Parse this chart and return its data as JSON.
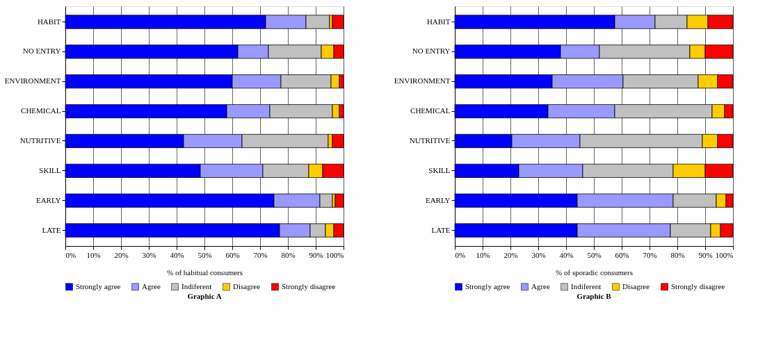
{
  "chart_data": [
    {
      "type": "bar",
      "orientation": "horizontal",
      "stacked": true,
      "title": "Graphic A",
      "xlabel": "% of habitual consumers",
      "categories": [
        "HABIT",
        "NO ENTRY",
        "ENVIRONMENT",
        "CHEMICAL",
        "NUTRITIVE",
        "SKILL",
        "EARLY",
        "LATE"
      ],
      "series": [
        {
          "name": "Strongly agree",
          "color": "#0000ff",
          "values": [
            72,
            62,
            60,
            58,
            42.5,
            48.5,
            75,
            77
          ]
        },
        {
          "name": "Agree",
          "color": "#9999ff",
          "values": [
            14.5,
            11,
            17.5,
            15.5,
            21,
            22.5,
            16.5,
            11
          ]
        },
        {
          "name": "Indiferent",
          "color": "#c0c0c0",
          "values": [
            8.5,
            19,
            18,
            22.5,
            31,
            16.5,
            4.5,
            5.5
          ]
        },
        {
          "name": "Disagree",
          "color": "#ffcc00",
          "values": [
            1,
            4.5,
            3,
            2.5,
            1.5,
            5,
            1,
            3
          ]
        },
        {
          "name": "Strongly disagree",
          "color": "#ff0000",
          "values": [
            4,
            3.5,
            1.5,
            1.5,
            4,
            7.5,
            3,
            3.5
          ]
        }
      ],
      "xlim": [
        0,
        100
      ],
      "xticks": [
        {
          "value": 0,
          "label": "0%"
        },
        {
          "value": 10,
          "label": "10%"
        },
        {
          "value": 20,
          "label": "20%"
        },
        {
          "value": 30,
          "label": "30%"
        },
        {
          "value": 40,
          "label": "40%"
        },
        {
          "value": 50,
          "label": "50%"
        },
        {
          "value": 60,
          "label": "60%"
        },
        {
          "value": 70,
          "label": "70%"
        },
        {
          "value": 80,
          "label": "80%"
        },
        {
          "value": 90,
          "label": "90%"
        },
        {
          "value": 100,
          "label": "100%"
        }
      ],
      "grid": "x",
      "legend": "bottom"
    },
    {
      "type": "bar",
      "orientation": "horizontal",
      "stacked": true,
      "title": "Graphic B",
      "xlabel": "% of sporadic consumers",
      "categories": [
        "HABIT",
        "NO ENTRY",
        "ENVIRONMENT",
        "CHEMICAL",
        "NUTRITIVE",
        "SKILL",
        "EARLY",
        "LATE"
      ],
      "series": [
        {
          "name": "Strongly agree",
          "color": "#0000ff",
          "values": [
            57.5,
            38,
            35,
            33.5,
            20.5,
            23,
            44,
            44
          ]
        },
        {
          "name": "Agree",
          "color": "#9999ff",
          "values": [
            14.5,
            14,
            25.5,
            24,
            24.5,
            23,
            34.5,
            33.5
          ]
        },
        {
          "name": "Indiferent",
          "color": "#c0c0c0",
          "values": [
            11.5,
            32.5,
            27,
            35,
            44,
            32.5,
            15.5,
            14.5
          ]
        },
        {
          "name": "Disagree",
          "color": "#ffcc00",
          "values": [
            7.5,
            5.5,
            7,
            4.5,
            5.5,
            11.5,
            3.5,
            3.5
          ]
        },
        {
          "name": "Strongly disagree",
          "color": "#ff0000",
          "values": [
            9,
            10,
            5.5,
            3,
            5.5,
            10,
            2.5,
            4.5
          ]
        }
      ],
      "xlim": [
        0,
        100
      ],
      "xticks": [
        {
          "value": 0,
          "label": "0%"
        },
        {
          "value": 10,
          "label": "10%"
        },
        {
          "value": 20,
          "label": "20%"
        },
        {
          "value": 30,
          "label": "30%"
        },
        {
          "value": 40,
          "label": "40%"
        },
        {
          "value": 50,
          "label": "50%"
        },
        {
          "value": 60,
          "label": "60%"
        },
        {
          "value": 70,
          "label": "70%"
        },
        {
          "value": 80,
          "label": "80%"
        },
        {
          "value": 90,
          "label": "90%"
        },
        {
          "value": 100,
          "label": "100%"
        }
      ],
      "grid": "x",
      "legend": "bottom"
    }
  ]
}
